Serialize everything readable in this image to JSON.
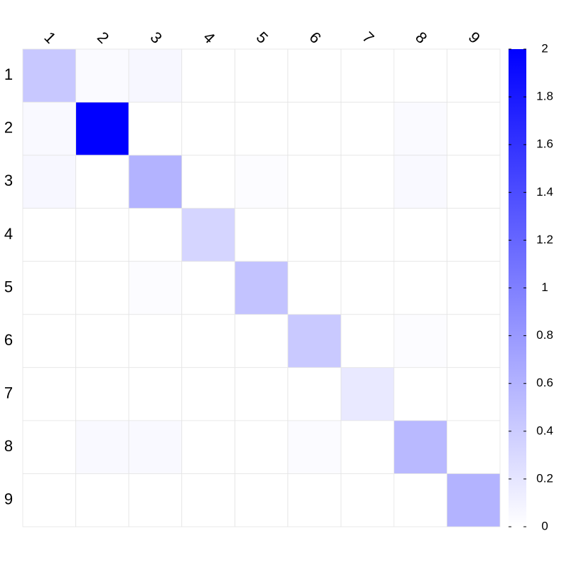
{
  "chart_data": {
    "type": "heatmap",
    "x_categories": [
      "1",
      "2",
      "3",
      "4",
      "5",
      "6",
      "7",
      "8",
      "9"
    ],
    "y_categories": [
      "1",
      "2",
      "3",
      "4",
      "5",
      "6",
      "7",
      "8",
      "9"
    ],
    "values": [
      [
        0.43,
        0.04,
        0.06,
        0,
        0,
        0,
        0,
        0,
        0
      ],
      [
        0.05,
        2,
        0,
        0,
        0,
        0,
        0,
        0.04,
        0
      ],
      [
        0.06,
        0,
        0.6,
        0,
        0.02,
        0,
        0,
        0.05,
        0
      ],
      [
        0,
        0,
        0,
        0.33,
        0,
        0,
        0,
        0,
        0
      ],
      [
        0,
        0,
        0.02,
        0,
        0.47,
        0,
        0,
        0,
        0
      ],
      [
        0,
        0,
        0,
        0,
        0,
        0.42,
        0,
        0.02,
        0
      ],
      [
        0,
        0,
        0,
        0,
        0,
        0,
        0.17,
        0,
        0
      ],
      [
        0,
        0.05,
        0.05,
        0,
        0,
        0.03,
        0,
        0.55,
        0
      ],
      [
        0,
        0,
        0,
        0,
        0,
        0,
        0,
        0,
        0.6
      ]
    ],
    "color_low": "#ffffff",
    "color_high": "#0000ff",
    "zlim": [
      0,
      2
    ],
    "zticks": [
      0,
      0.2,
      0.4,
      0.6,
      0.8,
      1,
      1.2,
      1.4,
      1.6,
      1.8,
      2
    ]
  }
}
